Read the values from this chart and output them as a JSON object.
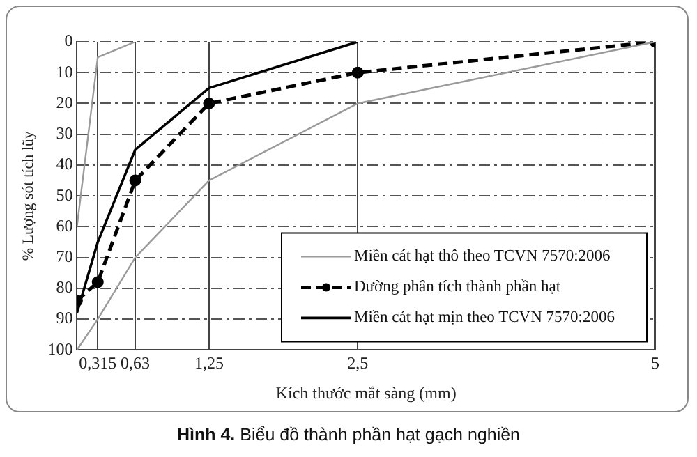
{
  "chart_data": {
    "type": "line",
    "title": "Hình 4. Biểu đồ thành phần hạt gạch nghiền",
    "xlabel": "Kích thước mắt sàng (mm)",
    "ylabel": "% Lượng sót tích lũy",
    "series": [
      {
        "name": "Miền cát hạt thô theo TCVN 7570:2006",
        "color": "#9a9a9a",
        "x": [
          0.14,
          0.315,
          0.63,
          1.25,
          2.5,
          5
        ],
        "values": [
          100,
          90,
          70,
          45,
          20,
          0
        ],
        "marker": "none",
        "line_style": "solid"
      },
      {
        "name": "Đường phân tích thành phần hạt",
        "color": "#000000",
        "x": [
          0.14,
          0.315,
          0.63,
          1.25,
          2.5,
          5
        ],
        "values": [
          84,
          78,
          45,
          20,
          10,
          0
        ],
        "marker": "circle",
        "line_style": "dashed"
      },
      {
        "name": "Miền cát hạt mịn theo TCVN 7570:2006",
        "color": "#000000",
        "x": [
          0.14,
          0.315,
          0.63,
          1.25,
          2.5
        ],
        "values": [
          88,
          65,
          35,
          15,
          0
        ],
        "marker": "none",
        "line_style": "solid"
      },
      {
        "color": "#9a9a9a",
        "x": [
          0.14,
          0.315,
          0.63
        ],
        "values": [
          60,
          5,
          0
        ],
        "marker": "none",
        "line_style": "solid"
      }
    ],
    "xlim": [
      0.14,
      5
    ],
    "xticks": [
      {
        "value": 0.315,
        "label": "0,315"
      },
      {
        "value": 0.63,
        "label": "0,63"
      },
      {
        "value": 1.25,
        "label": "1,25"
      },
      {
        "value": 2.5,
        "label": "2,5"
      },
      5
    ],
    "ylim": [
      100,
      0
    ],
    "yticks": [
      0,
      10,
      20,
      30,
      40,
      50,
      60,
      70,
      80,
      90,
      100
    ],
    "grid": true,
    "legend": "bottom right"
  }
}
